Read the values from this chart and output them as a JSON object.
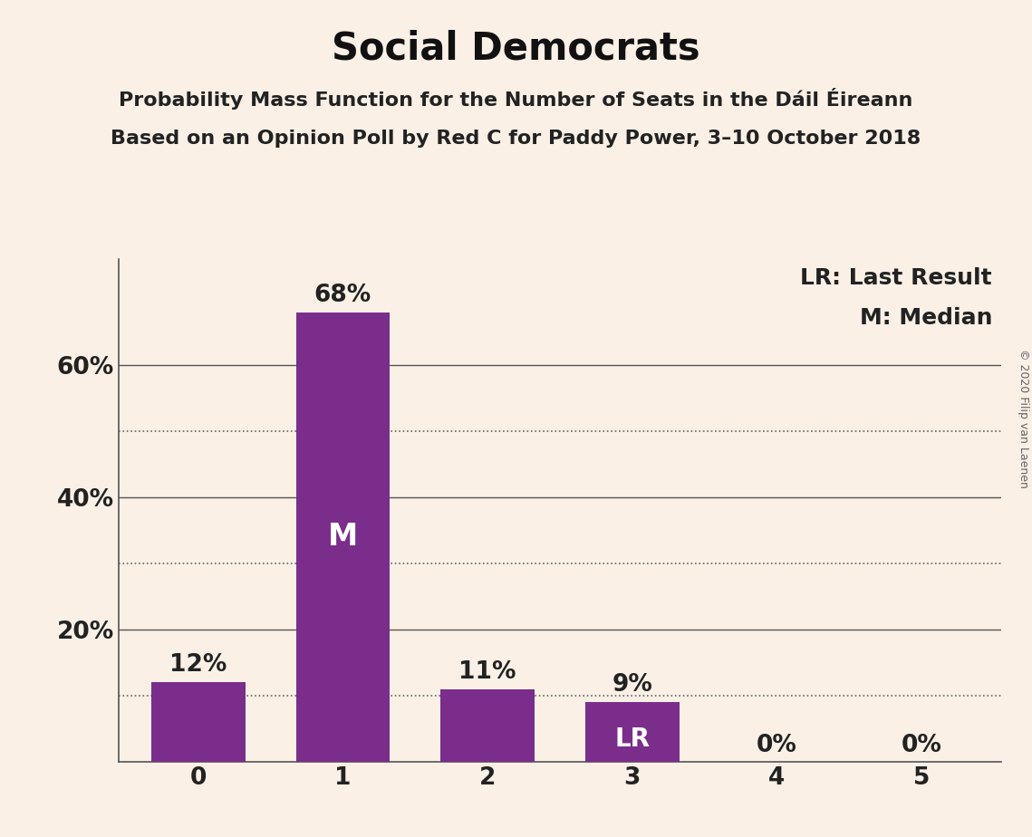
{
  "title": "Social Democrats",
  "subtitle1": "Probability Mass Function for the Number of Seats in the Dáil Éireann",
  "subtitle2": "Based on an Opinion Poll by Red C for Paddy Power, 3–10 October 2018",
  "copyright": "© 2020 Filip van Laenen",
  "categories": [
    0,
    1,
    2,
    3,
    4,
    5
  ],
  "values": [
    0.12,
    0.68,
    0.11,
    0.09,
    0.0,
    0.0
  ],
  "bar_color": "#7B2D8B",
  "background_color": "#FAF0E6",
  "bar_labels": [
    "12%",
    "68%",
    "11%",
    "9%",
    "0%",
    "0%"
  ],
  "median_bar": 1,
  "lr_bar": 3,
  "median_label": "M",
  "lr_label": "LR",
  "legend_lr": "LR: Last Result",
  "legend_m": "M: Median",
  "ylabel_ticks": [
    0.0,
    0.2,
    0.4,
    0.6
  ],
  "ylabel_labels": [
    "",
    "20%",
    "40%",
    "60%"
  ],
  "ytick_dotted": [
    0.1,
    0.3,
    0.5
  ],
  "ylim": [
    0,
    0.76
  ],
  "title_fontsize": 30,
  "subtitle_fontsize": 16,
  "bar_label_fontsize": 19,
  "axis_label_fontsize": 19,
  "inner_label_fontsize": 24,
  "lr_label_fontsize": 20,
  "legend_fontsize": 18,
  "copyright_fontsize": 9
}
